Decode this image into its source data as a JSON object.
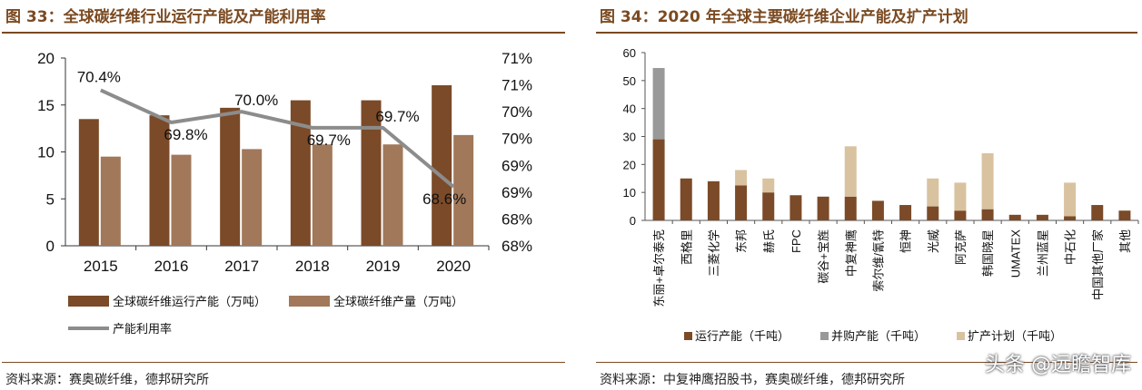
{
  "left": {
    "title": "图 33：全球碳纤维行业运行产能及产能利用率",
    "source": "资料来源：赛奥碳纤维，德邦研究所",
    "chart_data": {
      "type": "bar",
      "categories": [
        "2015",
        "2016",
        "2017",
        "2018",
        "2019",
        "2020"
      ],
      "series": [
        {
          "name": "全球碳纤维运行产能（万吨）",
          "type": "bar",
          "axis": "left",
          "color": "#7b4a28",
          "values": [
            13.5,
            13.9,
            14.7,
            15.5,
            15.5,
            17.1
          ]
        },
        {
          "name": "全球碳纤维产量（万吨）",
          "type": "bar",
          "axis": "left",
          "color": "#a1785a",
          "values": [
            9.5,
            9.7,
            10.3,
            10.8,
            10.8,
            11.8
          ]
        },
        {
          "name": "产能利用率",
          "type": "line",
          "axis": "right",
          "color": "#8c8c8c",
          "values": [
            70.4,
            69.8,
            70.0,
            69.7,
            69.7,
            68.6
          ],
          "labels": [
            "70.4%",
            "69.8%",
            "70.0%",
            "69.7%",
            "69.7%",
            "68.6%"
          ]
        }
      ],
      "yticks_left": [
        "0",
        "5",
        "10",
        "15",
        "20"
      ],
      "ylim_left": [
        0,
        20
      ],
      "yticks_right": [
        "68%",
        "68%",
        "69%",
        "69%",
        "70%",
        "70%",
        "71%",
        "71%"
      ],
      "ylim_right": [
        67.5,
        71.0
      ],
      "grid": false,
      "legend": "bottom"
    }
  },
  "right": {
    "title": "图 34：2020 年全球主要碳纤维企业产能及扩产计划",
    "source": "资料来源：中复神鹰招股书，赛奥碳纤维，德邦研究所",
    "chart_data": {
      "type": "bar",
      "stacked": true,
      "categories": [
        "东丽+卓尔泰克",
        "西格里",
        "三菱化学",
        "东邦",
        "赫氏",
        "FPC",
        "碳谷+宝旌",
        "中复神鹰",
        "索尔维/氰特",
        "恒神",
        "光威",
        "阿克萨",
        "韩国晓星",
        "UMATEX",
        "兰州蓝星",
        "中石化",
        "中国其他厂家",
        "其他"
      ],
      "series": [
        {
          "name": "运行产能（千吨）",
          "color": "#7b4a28",
          "values": [
            29,
            15,
            14,
            12.5,
            10,
            9,
            8.5,
            8.5,
            7,
            5.5,
            5,
            3.5,
            4,
            2,
            2,
            1.5,
            5.5,
            3.5
          ]
        },
        {
          "name": "并购产能（千吨）",
          "color": "#999999",
          "values": [
            25.5,
            0,
            0,
            0,
            0,
            0,
            0,
            0,
            0,
            0,
            0,
            0,
            0,
            0,
            0,
            0,
            0,
            0
          ]
        },
        {
          "name": "扩产计划（千吨）",
          "color": "#d9c29f",
          "values": [
            0,
            0,
            0,
            5.5,
            5,
            0,
            0,
            18,
            0,
            0,
            10,
            10,
            20,
            0,
            0,
            12,
            0,
            0
          ]
        }
      ],
      "yticks": [
        "0",
        "10",
        "20",
        "30",
        "40",
        "50",
        "60"
      ],
      "ylim": [
        0,
        60
      ],
      "grid": false,
      "legend": "bottom"
    }
  },
  "watermark": "头条 @远瞻智库"
}
